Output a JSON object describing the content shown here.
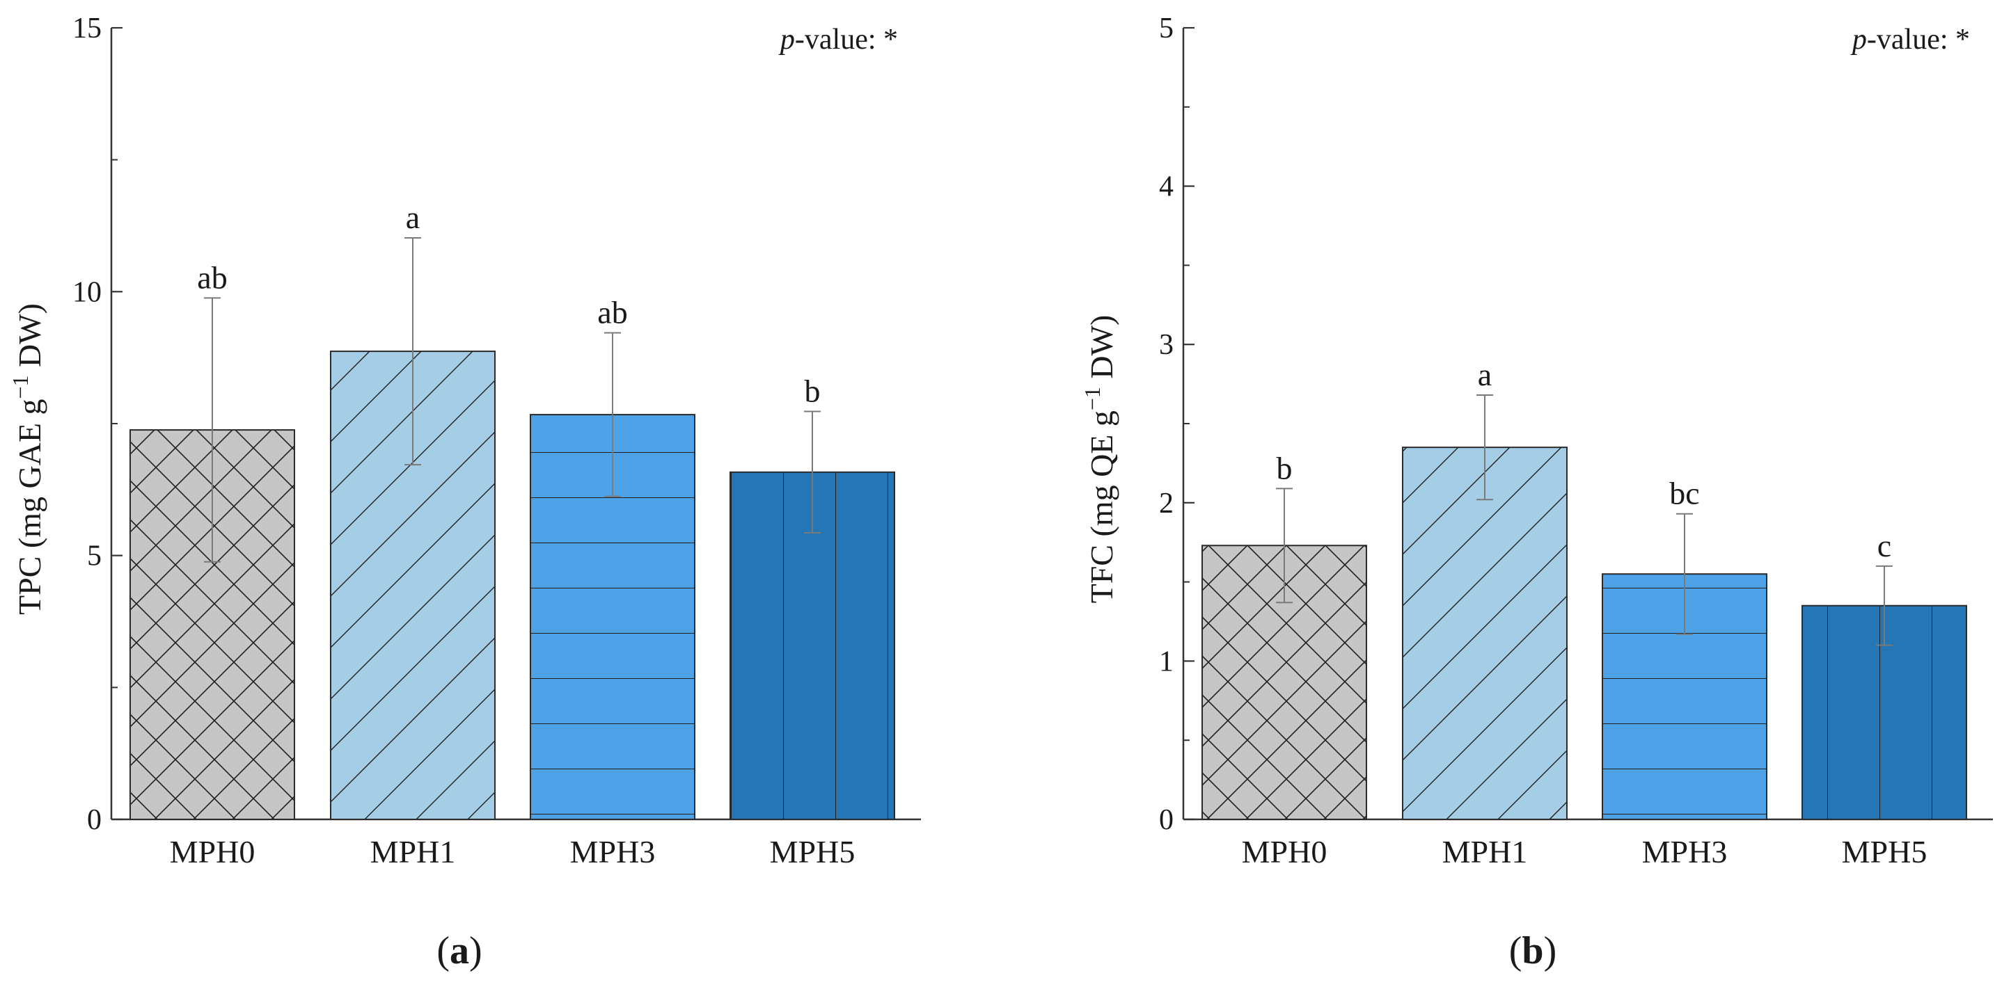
{
  "figure": {
    "colors": {
      "axis": "#333333",
      "bar_outline": "#2b2b2b",
      "error_bar": "#7a7a7a",
      "hatch": "#1e1e1e"
    }
  },
  "chart_data": [
    {
      "type": "bar",
      "panel_label": {
        "open": "(",
        "letter": "a",
        "close": ")"
      },
      "title": "",
      "xlabel": "",
      "ylabel": {
        "main": "TPC (mg GAE g",
        "sup": "−1",
        "tail": " DW)"
      },
      "ylim": [
        0,
        15
      ],
      "major_ticks": [
        0,
        5,
        10,
        15
      ],
      "minor_step": 2.5,
      "annotation": {
        "italic": "p",
        "rest": "-value: *"
      },
      "categories": [
        "MPH0",
        "MPH1",
        "MPH3",
        "MPH5"
      ],
      "values": [
        7.38,
        8.87,
        7.67,
        6.58
      ],
      "errors": [
        2.5,
        2.15,
        1.55,
        1.15
      ],
      "significance": [
        "ab",
        "a",
        "ab",
        "b"
      ],
      "colors": [
        "#c6c6c6",
        "#a6cde6",
        "#4ea3e8",
        "#2477b4"
      ],
      "hatches": [
        "cross",
        "diagonal",
        "horizontal",
        "vertical"
      ]
    },
    {
      "type": "bar",
      "panel_label": {
        "open": "(",
        "letter": "b",
        "close": ")"
      },
      "title": "",
      "xlabel": "",
      "ylabel": {
        "main": "TFC (mg QE g",
        "sup": "−1",
        "tail": " DW)"
      },
      "ylim": [
        0,
        5
      ],
      "major_ticks": [
        0,
        1,
        2,
        3,
        4,
        5
      ],
      "minor_step": 0.5,
      "annotation": {
        "italic": "p",
        "rest": "-value: *"
      },
      "categories": [
        "MPH0",
        "MPH1",
        "MPH3",
        "MPH5"
      ],
      "values": [
        1.73,
        2.35,
        1.55,
        1.35
      ],
      "errors": [
        0.36,
        0.33,
        0.38,
        0.25
      ],
      "significance": [
        "b",
        "a",
        "bc",
        "c"
      ],
      "colors": [
        "#c6c6c6",
        "#a6cde6",
        "#4ea3e8",
        "#2477b4"
      ],
      "hatches": [
        "cross",
        "diagonal",
        "horizontal",
        "vertical"
      ]
    }
  ]
}
